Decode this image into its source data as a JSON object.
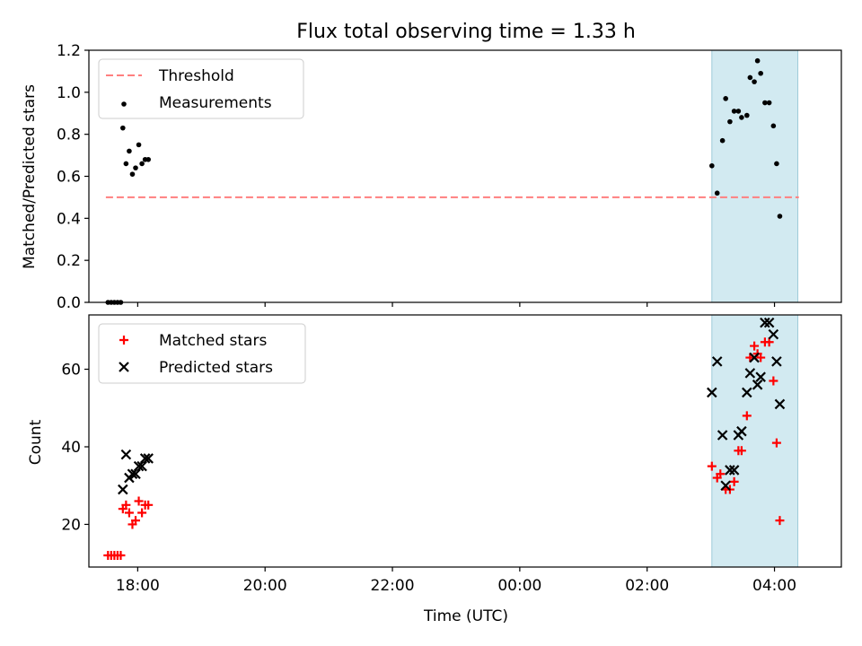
{
  "chart_data": [
    {
      "type": "scatter",
      "title": "Flux total observing time = 1.33 h",
      "xlabel": "",
      "ylabel": "Matched/Predicted stars",
      "xlim": [
        "17:14",
        "05:03"
      ],
      "ylim": [
        0,
        1.2
      ],
      "yticks": [
        0.0,
        0.2,
        0.4,
        0.6,
        0.8,
        1.0,
        1.2
      ],
      "ytick_labels": [
        "0.0",
        "0.2",
        "0.4",
        "0.6",
        "0.8",
        "1.0",
        "1.2"
      ],
      "highlight_span": {
        "from": "03:01",
        "to": "04:22",
        "color": "#add8e6"
      },
      "legend": {
        "position": "upper-left"
      },
      "series": [
        {
          "name": "Threshold",
          "kind": "dashed-line",
          "color": "#ff7f7f",
          "points": [
            {
              "x": "17:30",
              "y": 0.5
            },
            {
              "x": "04:23",
              "y": 0.5
            }
          ]
        },
        {
          "name": "Measurements",
          "kind": "dot",
          "color": "#000000",
          "points": [
            {
              "x": "17:32",
              "y": 0.0
            },
            {
              "x": "17:35",
              "y": 0.0
            },
            {
              "x": "17:38",
              "y": 0.0
            },
            {
              "x": "17:41",
              "y": 0.0
            },
            {
              "x": "17:44",
              "y": 0.0
            },
            {
              "x": "17:46",
              "y": 0.83
            },
            {
              "x": "17:49",
              "y": 0.66
            },
            {
              "x": "17:52",
              "y": 0.72
            },
            {
              "x": "17:55",
              "y": 0.61
            },
            {
              "x": "17:58",
              "y": 0.64
            },
            {
              "x": "18:01",
              "y": 0.75
            },
            {
              "x": "18:04",
              "y": 0.66
            },
            {
              "x": "18:07",
              "y": 0.68
            },
            {
              "x": "18:10",
              "y": 0.68
            },
            {
              "x": "03:01",
              "y": 0.65
            },
            {
              "x": "03:06",
              "y": 0.52
            },
            {
              "x": "03:11",
              "y": 0.77
            },
            {
              "x": "03:14",
              "y": 0.97
            },
            {
              "x": "03:18",
              "y": 0.86
            },
            {
              "x": "03:22",
              "y": 0.91
            },
            {
              "x": "03:26",
              "y": 0.91
            },
            {
              "x": "03:29",
              "y": 0.88
            },
            {
              "x": "03:34",
              "y": 0.89
            },
            {
              "x": "03:37",
              "y": 1.07
            },
            {
              "x": "03:41",
              "y": 1.05
            },
            {
              "x": "03:44",
              "y": 1.15
            },
            {
              "x": "03:47",
              "y": 1.09
            },
            {
              "x": "03:51",
              "y": 0.95
            },
            {
              "x": "03:55",
              "y": 0.95
            },
            {
              "x": "03:59",
              "y": 0.84
            },
            {
              "x": "04:02",
              "y": 0.66
            },
            {
              "x": "04:05",
              "y": 0.41
            }
          ]
        }
      ]
    },
    {
      "type": "scatter",
      "title": "",
      "xlabel": "Time (UTC)",
      "ylabel": "Count",
      "xlim": [
        "17:14",
        "05:03"
      ],
      "xticks": [
        "18:00",
        "20:00",
        "22:00",
        "00:00",
        "02:00",
        "04:00"
      ],
      "ylim": [
        9,
        74
      ],
      "yticks": [
        20,
        40,
        60
      ],
      "ytick_labels": [
        "20",
        "40",
        "60"
      ],
      "highlight_span": {
        "from": "03:01",
        "to": "04:22",
        "color": "#add8e6"
      },
      "legend": {
        "position": "upper-left"
      },
      "series": [
        {
          "name": "Matched stars",
          "kind": "plus",
          "color": "#ff0000",
          "points": [
            {
              "x": "17:32",
              "y": 12
            },
            {
              "x": "17:35",
              "y": 12
            },
            {
              "x": "17:38",
              "y": 12
            },
            {
              "x": "17:41",
              "y": 12
            },
            {
              "x": "17:44",
              "y": 12
            },
            {
              "x": "17:46",
              "y": 24
            },
            {
              "x": "17:49",
              "y": 25
            },
            {
              "x": "17:52",
              "y": 23
            },
            {
              "x": "17:55",
              "y": 20
            },
            {
              "x": "17:58",
              "y": 21
            },
            {
              "x": "18:01",
              "y": 26
            },
            {
              "x": "18:04",
              "y": 23
            },
            {
              "x": "18:07",
              "y": 25
            },
            {
              "x": "18:10",
              "y": 25
            },
            {
              "x": "03:01",
              "y": 35
            },
            {
              "x": "03:06",
              "y": 32
            },
            {
              "x": "03:09",
              "y": 33
            },
            {
              "x": "03:14",
              "y": 29
            },
            {
              "x": "03:18",
              "y": 29
            },
            {
              "x": "03:22",
              "y": 31
            },
            {
              "x": "03:26",
              "y": 39
            },
            {
              "x": "03:29",
              "y": 39
            },
            {
              "x": "03:34",
              "y": 48
            },
            {
              "x": "03:37",
              "y": 63
            },
            {
              "x": "03:41",
              "y": 66
            },
            {
              "x": "03:44",
              "y": 64
            },
            {
              "x": "03:47",
              "y": 63
            },
            {
              "x": "03:51",
              "y": 67
            },
            {
              "x": "03:55",
              "y": 67
            },
            {
              "x": "03:59",
              "y": 57
            },
            {
              "x": "04:02",
              "y": 41
            },
            {
              "x": "04:05",
              "y": 21
            }
          ]
        },
        {
          "name": "Predicted stars",
          "kind": "x",
          "color": "#000000",
          "points": [
            {
              "x": "17:46",
              "y": 29
            },
            {
              "x": "17:49",
              "y": 38
            },
            {
              "x": "17:52",
              "y": 32
            },
            {
              "x": "17:55",
              "y": 33
            },
            {
              "x": "17:58",
              "y": 33
            },
            {
              "x": "18:01",
              "y": 35
            },
            {
              "x": "18:04",
              "y": 35
            },
            {
              "x": "18:07",
              "y": 37
            },
            {
              "x": "18:10",
              "y": 37
            },
            {
              "x": "03:01",
              "y": 54
            },
            {
              "x": "03:06",
              "y": 62
            },
            {
              "x": "03:11",
              "y": 43
            },
            {
              "x": "03:14",
              "y": 30
            },
            {
              "x": "03:18",
              "y": 34
            },
            {
              "x": "03:22",
              "y": 34
            },
            {
              "x": "03:26",
              "y": 43
            },
            {
              "x": "03:29",
              "y": 44
            },
            {
              "x": "03:34",
              "y": 54
            },
            {
              "x": "03:37",
              "y": 59
            },
            {
              "x": "03:41",
              "y": 63
            },
            {
              "x": "03:44",
              "y": 56
            },
            {
              "x": "03:47",
              "y": 58
            },
            {
              "x": "03:51",
              "y": 72
            },
            {
              "x": "03:55",
              "y": 72
            },
            {
              "x": "03:59",
              "y": 69
            },
            {
              "x": "04:02",
              "y": 62
            },
            {
              "x": "04:05",
              "y": 51
            }
          ]
        }
      ]
    }
  ]
}
